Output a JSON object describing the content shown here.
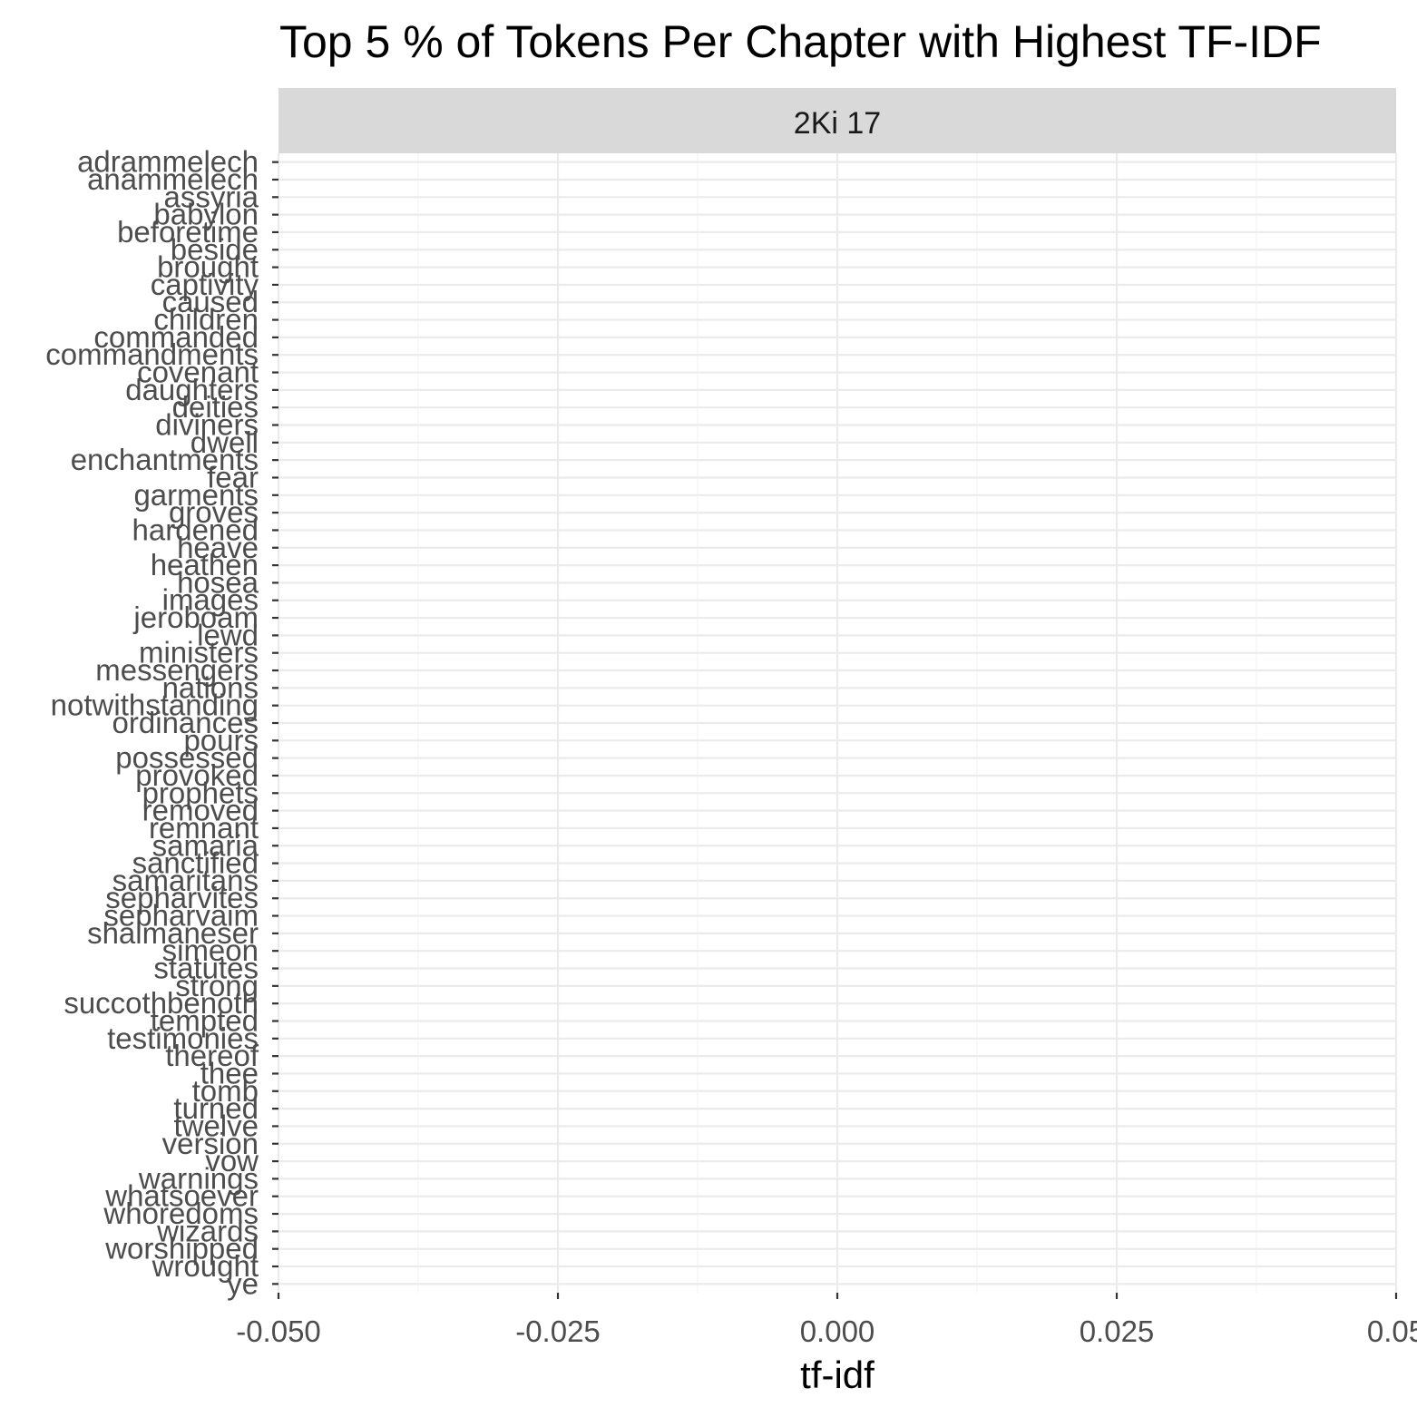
{
  "chart_data": {
    "type": "bar",
    "title": "Top 5 % of Tokens Per Chapter with Highest TF-IDF",
    "facet": "2Ki 17",
    "xlabel": "tf-idf",
    "ylabel": "",
    "xlim": [
      -0.05,
      0.05
    ],
    "x_ticks": [
      "-0.050",
      "-0.025",
      "0.000",
      "0.025",
      "0.05"
    ],
    "grid": true,
    "colors": {
      "panel_background": "#ffffff",
      "grid_major": "#ebebeb",
      "strip_background": "#d9d9d9",
      "tick_text": "#4d4d4d",
      "tick_mark": "#333333"
    },
    "categories": [
      "ye",
      "wrought",
      "worshipped",
      "wizards",
      "whoredoms",
      "whatsoever",
      "warnings",
      "vow",
      "version",
      "twelve",
      "turned",
      "tomb",
      "thee",
      "thereof",
      "testimonies",
      "tempted",
      "succothbenoth",
      "strong",
      "statutes",
      "simeon",
      "shalmaneser",
      "sepharvaim",
      "sepharvites",
      "samaritans",
      "sanctified",
      "samaria",
      "remnant",
      "removed",
      "prophets",
      "provoked",
      "possessed",
      "pours",
      "ordinances",
      "notwithstanding",
      "nations",
      "messengers",
      "ministers",
      "lewd",
      "jeroboam",
      "images",
      "hosea",
      "heathen",
      "heave",
      "hardened",
      "groves",
      "garments",
      "fear",
      "enchantments",
      "dwell",
      "diviners",
      "deities",
      "daughters",
      "covenant",
      "commandments",
      "commanded",
      "children",
      "caused",
      "captivity",
      "brought",
      "beside",
      "beforetime",
      "babylon",
      "assyria",
      "anammelech",
      "adrammelech"
    ],
    "values": [
      0,
      0,
      0,
      0,
      0,
      0,
      0,
      0,
      0,
      0,
      0,
      0,
      0,
      0,
      0,
      0,
      0,
      0,
      0,
      0,
      0,
      0,
      0,
      0,
      0,
      0,
      0,
      0,
      0,
      0,
      0,
      0,
      0,
      0,
      0,
      0,
      0,
      0,
      0,
      0,
      0,
      0,
      0,
      0,
      0,
      0,
      0,
      0,
      0,
      0,
      0,
      0,
      0,
      0,
      0,
      0,
      0,
      0,
      0,
      0,
      0,
      0,
      0,
      0,
      0
    ]
  }
}
